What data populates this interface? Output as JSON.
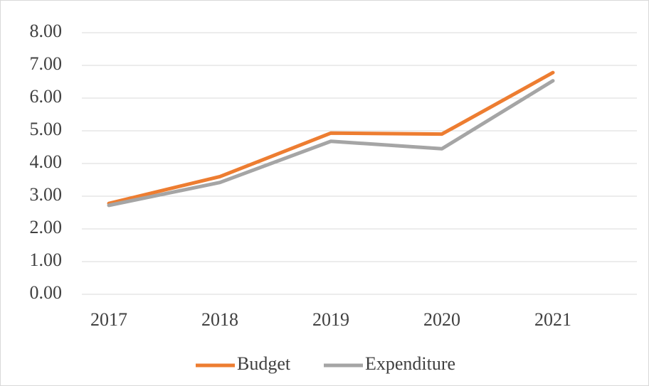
{
  "chart_data": {
    "type": "line",
    "categories": [
      "2017",
      "2018",
      "2019",
      "2020",
      "2021"
    ],
    "series": [
      {
        "name": "Budget",
        "color": "#ed7d31",
        "values": [
          2.78,
          3.6,
          4.93,
          4.9,
          6.78
        ]
      },
      {
        "name": "Expenditure",
        "color": "#a5a5a5",
        "values": [
          2.72,
          3.42,
          4.68,
          4.45,
          6.53
        ]
      }
    ],
    "ylim": [
      0,
      8
    ],
    "yticks": [
      {
        "value": 0,
        "label": "0.00"
      },
      {
        "value": 1,
        "label": "1.00"
      },
      {
        "value": 2,
        "label": "2.00"
      },
      {
        "value": 3,
        "label": "3.00"
      },
      {
        "value": 4,
        "label": "4.00"
      },
      {
        "value": 5,
        "label": "5.00"
      },
      {
        "value": 6,
        "label": "6.00"
      },
      {
        "value": 7,
        "label": "7.00"
      },
      {
        "value": 8,
        "label": "8.00"
      }
    ],
    "grid": true,
    "legend": "bottom"
  }
}
